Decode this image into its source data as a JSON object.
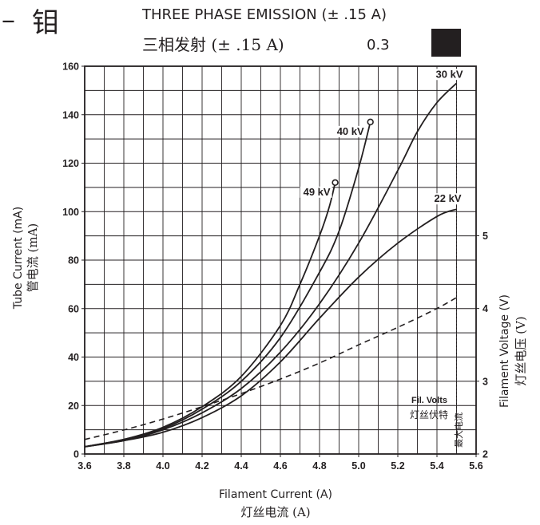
{
  "header": {
    "dash": "–",
    "anode": "钼",
    "title_en": "THREE PHASE EMISSION (± .15 A)",
    "title_cn": "三相发射 (± .15 A)",
    "focal_spot": "0.3"
  },
  "colors": {
    "ink": "#231f20",
    "background": "#ffffff",
    "focal_spot_box": "#231f20"
  },
  "chart_data": {
    "type": "line",
    "x_axis": {
      "label": "Filament Current (A)",
      "label_cn": "灯丝电流 (A)",
      "range": [
        3.6,
        5.6
      ],
      "ticks": [
        "3.6",
        "3.8",
        "4.0",
        "4.2",
        "4.4",
        "4.6",
        "4.8",
        "5.0",
        "5.2",
        "5.4",
        "5.6"
      ],
      "grid_step": 0.1
    },
    "y_axis_left": {
      "label": "Tube Current (mA)",
      "label_cn": "管电流 (mA)",
      "range": [
        0,
        160
      ],
      "ticks": [
        "0",
        "20",
        "40",
        "60",
        "80",
        "100",
        "120",
        "140",
        "160"
      ],
      "grid_step": 10
    },
    "y_axis_right": {
      "label": "Filament Voltage (V)",
      "label_cn": "灯丝电压 (V)",
      "range": [
        2,
        7.33
      ],
      "ticks": [
        "2",
        "3",
        "4",
        "5"
      ]
    },
    "grid": true,
    "series": [
      {
        "name": "49 kV",
        "style": "solid",
        "end_marker": "circle",
        "points": [
          [
            3.6,
            3
          ],
          [
            3.8,
            6
          ],
          [
            4.0,
            11
          ],
          [
            4.2,
            19.5
          ],
          [
            4.4,
            32
          ],
          [
            4.6,
            53
          ],
          [
            4.7,
            70
          ],
          [
            4.8,
            90
          ],
          [
            4.85,
            102
          ],
          [
            4.88,
            112
          ]
        ]
      },
      {
        "name": "40 kV",
        "style": "solid",
        "end_marker": "circle",
        "points": [
          [
            3.6,
            3
          ],
          [
            3.8,
            6
          ],
          [
            4.0,
            10.5
          ],
          [
            4.2,
            18.5
          ],
          [
            4.4,
            30
          ],
          [
            4.6,
            48
          ],
          [
            4.8,
            75
          ],
          [
            4.9,
            92
          ],
          [
            5.0,
            118
          ],
          [
            5.06,
            137
          ]
        ]
      },
      {
        "name": "30 kV",
        "style": "solid",
        "end_marker": "none",
        "points": [
          [
            3.6,
            3
          ],
          [
            3.8,
            5.5
          ],
          [
            4.0,
            10
          ],
          [
            4.2,
            17
          ],
          [
            4.4,
            27
          ],
          [
            4.6,
            42
          ],
          [
            4.8,
            62
          ],
          [
            5.0,
            87
          ],
          [
            5.2,
            117
          ],
          [
            5.3,
            133
          ],
          [
            5.4,
            145
          ],
          [
            5.5,
            153
          ]
        ]
      },
      {
        "name": "22 kV",
        "style": "solid",
        "end_marker": "none",
        "points": [
          [
            3.6,
            3
          ],
          [
            3.8,
            5.5
          ],
          [
            4.0,
            9
          ],
          [
            4.2,
            15
          ],
          [
            4.4,
            24
          ],
          [
            4.6,
            38
          ],
          [
            4.8,
            56
          ],
          [
            5.0,
            73
          ],
          [
            5.2,
            87
          ],
          [
            5.4,
            98
          ],
          [
            5.5,
            101
          ]
        ]
      },
      {
        "name": "Fil. Volts",
        "name_cn": "灯丝伏特",
        "style": "dashed",
        "axis": "right",
        "points": [
          [
            3.6,
            2.2
          ],
          [
            3.8,
            2.33
          ],
          [
            4.0,
            2.48
          ],
          [
            4.2,
            2.65
          ],
          [
            4.4,
            2.83
          ],
          [
            4.6,
            3.03
          ],
          [
            4.8,
            3.25
          ],
          [
            5.0,
            3.5
          ],
          [
            5.2,
            3.74
          ],
          [
            5.4,
            4.0
          ],
          [
            5.5,
            4.15
          ]
        ]
      }
    ],
    "annotations": {
      "max_current_x": 5.5,
      "max_current_label": "最大电流"
    }
  }
}
